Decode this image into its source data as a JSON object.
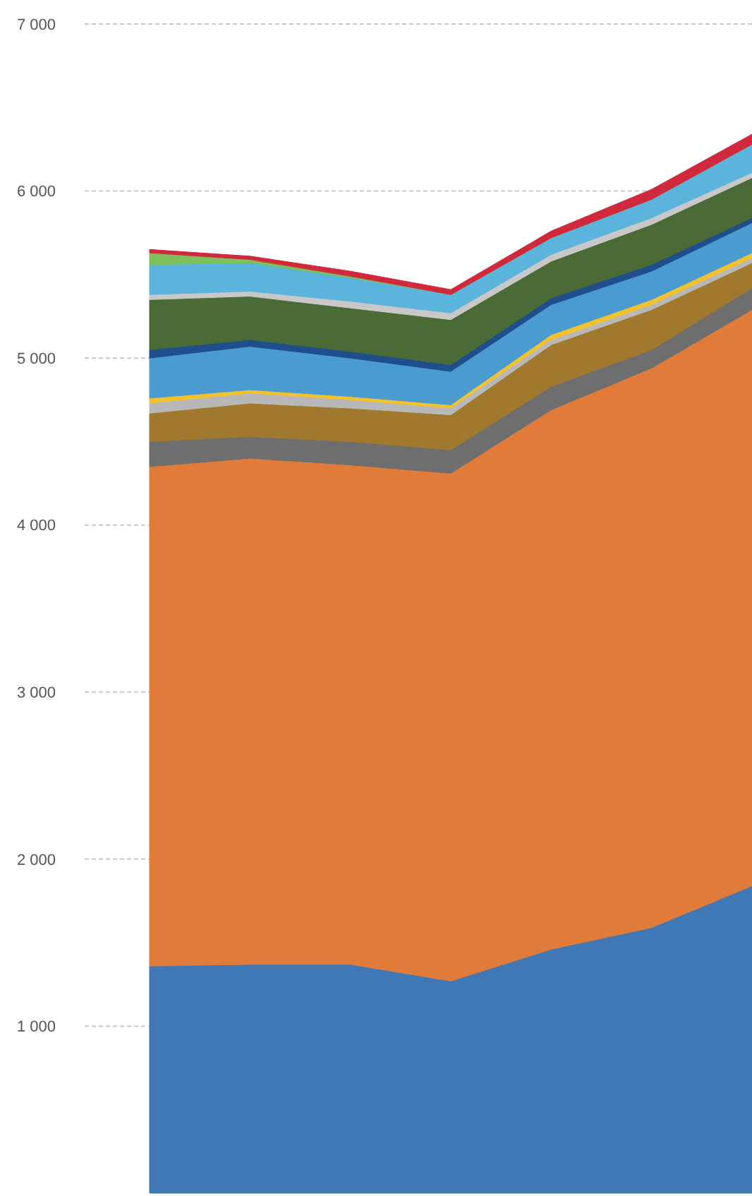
{
  "chart_data": {
    "type": "area",
    "stacked": true,
    "categories": [
      null,
      null,
      null,
      null,
      null,
      null,
      null
    ],
    "ylim": [
      0,
      7000
    ],
    "yticks": [
      {
        "value": 1000,
        "label": "1 000"
      },
      {
        "value": 2000,
        "label": "2 000"
      },
      {
        "value": 3000,
        "label": "3 000"
      },
      {
        "value": 4000,
        "label": "4 000"
      },
      {
        "value": 5000,
        "label": "5 000"
      },
      {
        "value": 6000,
        "label": "6 000"
      },
      {
        "value": 7000,
        "label": "7 000"
      }
    ],
    "grid": "y",
    "tick_labels": "y",
    "series": [
      {
        "color": "#3f78b5",
        "values": [
          1360,
          1370,
          1370,
          1270,
          1460,
          1590,
          1840
        ]
      },
      {
        "color": "#e07b39",
        "values": [
          2990,
          3030,
          2990,
          3040,
          3230,
          3350,
          3450
        ]
      },
      {
        "color": "#6e6e6e",
        "values": [
          150,
          130,
          140,
          140,
          140,
          110,
          130
        ]
      },
      {
        "color": "#a0782e",
        "values": [
          170,
          200,
          200,
          210,
          250,
          240,
          150
        ]
      },
      {
        "color": "#b8b8b8",
        "values": [
          60,
          60,
          50,
          40,
          30,
          30,
          30
        ]
      },
      {
        "color": "#f2c12e",
        "values": [
          30,
          20,
          20,
          20,
          30,
          30,
          30
        ]
      },
      {
        "color": "#4a9bd0",
        "values": [
          240,
          260,
          230,
          200,
          180,
          170,
          180
        ]
      },
      {
        "color": "#1f4e8c",
        "values": [
          50,
          40,
          40,
          40,
          40,
          40,
          30
        ]
      },
      {
        "color": "#4a6b35",
        "values": [
          300,
          260,
          260,
          270,
          220,
          240,
          240
        ]
      },
      {
        "color": "#c8c8c8",
        "values": [
          30,
          30,
          40,
          40,
          40,
          40,
          30
        ]
      },
      {
        "color": "#5ab4dc",
        "values": [
          180,
          170,
          140,
          110,
          100,
          110,
          170
        ]
      },
      {
        "color": "#7dbf5a",
        "values": [
          70,
          20,
          10,
          0,
          0,
          0,
          0
        ]
      },
      {
        "color": "#d0283c",
        "values": [
          20,
          20,
          30,
          30,
          40,
          60,
          60
        ]
      }
    ]
  }
}
